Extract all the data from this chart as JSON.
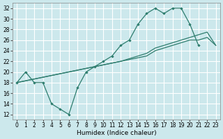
{
  "xlabel": "Humidex (Indice chaleur)",
  "ylabel": "",
  "xlim": [
    -0.5,
    23.5
  ],
  "ylim": [
    11,
    33
  ],
  "yticks": [
    12,
    14,
    16,
    18,
    20,
    22,
    24,
    26,
    28,
    30,
    32
  ],
  "xticks": [
    0,
    1,
    2,
    3,
    4,
    5,
    6,
    7,
    8,
    9,
    10,
    11,
    12,
    13,
    14,
    15,
    16,
    17,
    18,
    19,
    20,
    21,
    22,
    23
  ],
  "background_color": "#cce8ec",
  "grid_color": "#ffffff",
  "line_color": "#2e7d6e",
  "line1_x": [
    0,
    1,
    2,
    3,
    4,
    5,
    6,
    7,
    8,
    9,
    10,
    11,
    12,
    13,
    14,
    15,
    16,
    17,
    18,
    19,
    20,
    21
  ],
  "line1_y": [
    18,
    20,
    18,
    18,
    14,
    13,
    12,
    17,
    20,
    21,
    22,
    23,
    25,
    26,
    29,
    31,
    32,
    31,
    32,
    32,
    29,
    25
  ],
  "line2_x": [
    0,
    3,
    6,
    9,
    12,
    15,
    16,
    17,
    18,
    19,
    20,
    21,
    22,
    23
  ],
  "line2_y": [
    18,
    19,
    20,
    21,
    22,
    23,
    24,
    24.5,
    25,
    25.5,
    26,
    26,
    26.5,
    25
  ],
  "line3_x": [
    0,
    3,
    6,
    9,
    12,
    15,
    16,
    17,
    18,
    19,
    20,
    21,
    22,
    23
  ],
  "line3_y": [
    18,
    19,
    20,
    21,
    22,
    23.5,
    24.5,
    25,
    25.5,
    26,
    26.5,
    27,
    27.5,
    25
  ]
}
